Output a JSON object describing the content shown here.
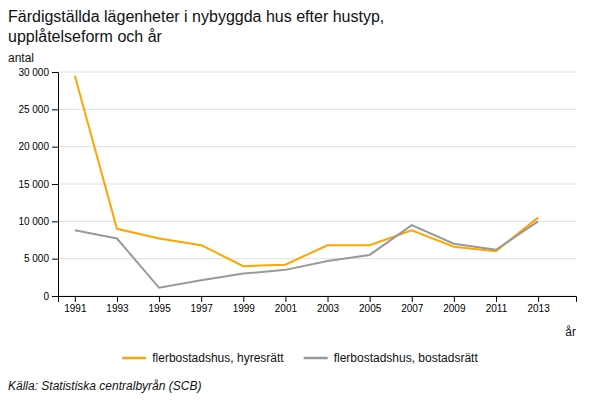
{
  "chart_data": {
    "type": "line",
    "title": "Färdigställda lägenheter i nybyggda hus efter hustyp,",
    "subtitle": "upplåtelseform och år",
    "x_label": "år",
    "y_label": "antal",
    "source": "Källa: Statistiska centralbyrån (SCB)",
    "x": [
      1991,
      1993,
      1995,
      1997,
      1999,
      2001,
      2003,
      2005,
      2007,
      2009,
      2011,
      2013
    ],
    "series": [
      {
        "name": "flerbostadshus, hyresrätt",
        "color": "#FFA500",
        "values": [
          29500,
          9000,
          7700,
          6800,
          4000,
          4200,
          6800,
          6800,
          8800,
          6600,
          6000,
          10500
        ]
      },
      {
        "name": "flerbostadshus, bostadsrätt",
        "color": "#999999",
        "values": [
          8800,
          7700,
          1100,
          2100,
          3000,
          3500,
          4700,
          5500,
          9500,
          7000,
          6200,
          10000
        ]
      }
    ],
    "xlim": [
      1990.2,
      2014.8
    ],
    "xticks": [
      1991,
      1993,
      1995,
      1997,
      1999,
      2001,
      2003,
      2005,
      2007,
      2009,
      2011,
      2013
    ],
    "ylim": [
      0,
      30000
    ],
    "yticks": [
      0,
      {
        "value": 5000,
        "label": "5 000"
      },
      {
        "value": 10000,
        "label": "10 000"
      },
      {
        "value": 15000,
        "label": "15 000"
      },
      {
        "value": 20000,
        "label": "20 000"
      },
      {
        "value": 25000,
        "label": "25 000"
      },
      {
        "value": 30000,
        "label": "30 000"
      }
    ],
    "grid": true,
    "legend": "bottom"
  }
}
